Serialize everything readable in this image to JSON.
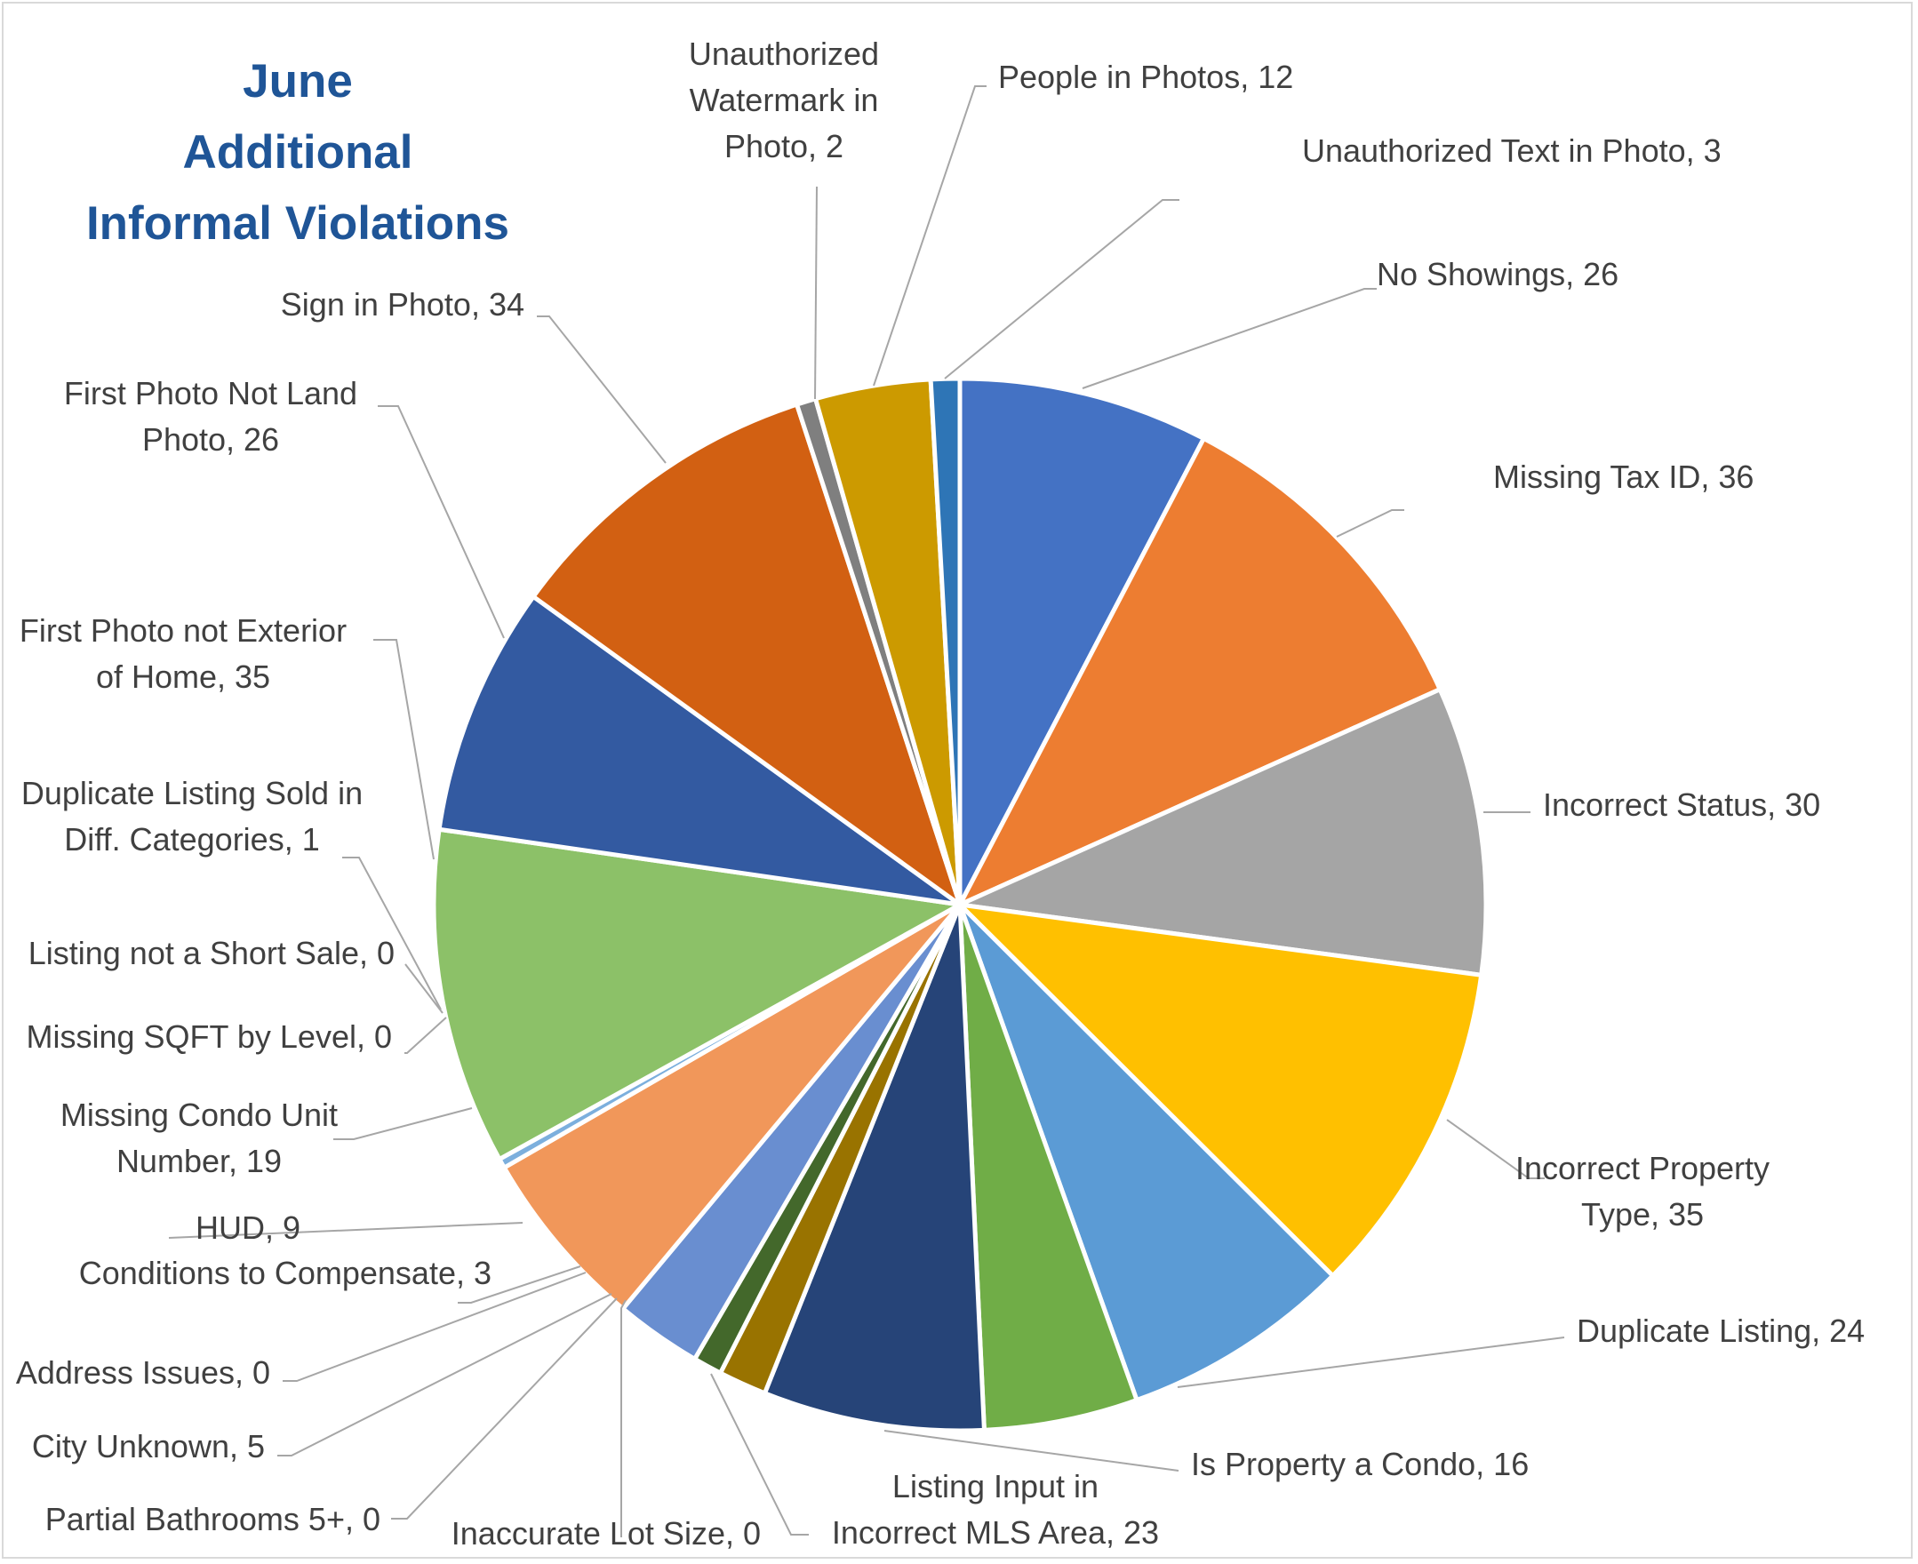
{
  "chart_data": {
    "type": "pie",
    "title_lines": [
      "June",
      "Additional",
      "Informal Violations"
    ],
    "slices": [
      {
        "label": [
          "No Showings, 26"
        ],
        "value": 26,
        "color": "#4472c4"
      },
      {
        "label": [
          "Missing Tax ID, 36"
        ],
        "value": 36,
        "color": "#ed7d31"
      },
      {
        "label": [
          "Incorrect Status, 30"
        ],
        "value": 30,
        "color": "#a5a5a5"
      },
      {
        "label": [
          "Incorrect Property",
          "Type, 35"
        ],
        "value": 35,
        "color": "#ffc000"
      },
      {
        "label": [
          "Duplicate Listing, 24"
        ],
        "value": 24,
        "color": "#5b9bd5"
      },
      {
        "label": [
          "Is Property a Condo, 16"
        ],
        "value": 16,
        "color": "#70ad47"
      },
      {
        "label": [
          "Listing Input in",
          "Incorrect MLS Area, 23"
        ],
        "value": 23,
        "color": "#264478"
      },
      {
        "label": [
          "Inaccurate Lot Size, 0"
        ],
        "value": 0,
        "color": "#9e480e"
      },
      {
        "label": [
          "Partial Bathrooms 5+, 0"
        ],
        "value": 0,
        "color": "#636363"
      },
      {
        "label": [
          "City Unknown, 5"
        ],
        "value": 5,
        "color": "#997300"
      },
      {
        "label": [
          "Address Issues, 0"
        ],
        "value": 0,
        "color": "#255e91"
      },
      {
        "label": [
          "Conditions to Compensate, 3"
        ],
        "value": 3,
        "color": "#43682b"
      },
      {
        "label": [
          "HUD, 9"
        ],
        "value": 9,
        "color": "#698ed0"
      },
      {
        "label": [
          "Missing Condo Unit",
          "Number, 19"
        ],
        "value": 19,
        "color": "#f1975a"
      },
      {
        "label": [
          "Missing SQFT by Level, 0"
        ],
        "value": 0,
        "color": "#b7b7b7"
      },
      {
        "label": [
          "Listing not a Short Sale, 0"
        ],
        "value": 0,
        "color": "#ffcd33"
      },
      {
        "label": [
          "Duplicate Listing Sold in",
          "Diff. Categories, 1"
        ],
        "value": 1,
        "color": "#7cafdd"
      },
      {
        "label": [
          "First Photo not Exterior",
          "of Home, 35"
        ],
        "value": 35,
        "color": "#8cc168"
      },
      {
        "label": [
          "First Photo Not Land",
          "Photo, 26"
        ],
        "value": 26,
        "color": "#335aa1"
      },
      {
        "label": [
          "Sign in Photo, 34"
        ],
        "value": 34,
        "color": "#d26012"
      },
      {
        "label": [
          "Unauthorized",
          "Watermark in",
          "Photo, 2"
        ],
        "value": 2,
        "color": "#7f7f7f"
      },
      {
        "label": [
          "People in Photos, 12"
        ],
        "value": 12,
        "color": "#cc9a00"
      },
      {
        "label": [
          "Unauthorized Text in Photo, 3"
        ],
        "value": 3,
        "color": "#2e75b6"
      }
    ]
  }
}
